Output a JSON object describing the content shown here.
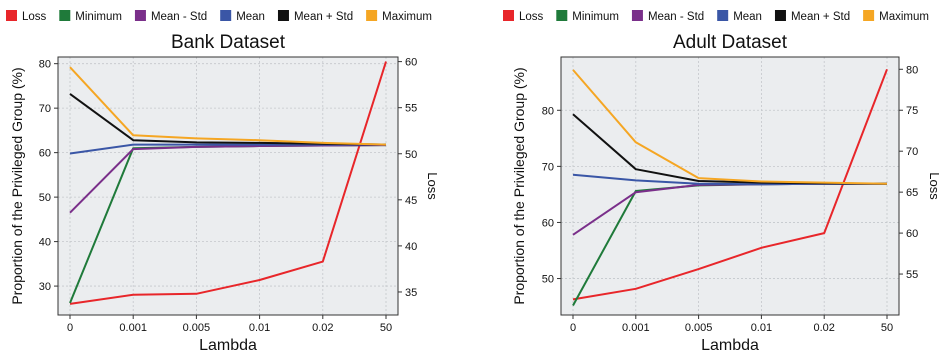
{
  "legend": [
    {
      "label": "Loss",
      "color": "#e8262a"
    },
    {
      "label": "Minimum",
      "color": "#1f7a3a"
    },
    {
      "label": "Mean - Std",
      "color": "#7a2f8a"
    },
    {
      "label": "Mean",
      "color": "#3a56a6"
    },
    {
      "label": "Mean + Std",
      "color": "#111111"
    },
    {
      "label": "Maximum",
      "color": "#f5a623"
    }
  ],
  "chart_data": [
    {
      "type": "line",
      "title": "Bank Dataset",
      "xlabel": "Lambda",
      "ylabel": "Proportion of the Privileged Group (%)",
      "y2label": "Loss",
      "categories": [
        "0",
        "0.001",
        "0.005",
        "0.01",
        "0.02",
        "50"
      ],
      "ylim": [
        23.5,
        81.5
      ],
      "yticks": [
        30,
        40,
        50,
        60,
        70,
        80
      ],
      "y2lim": [
        32.5,
        60.5
      ],
      "y2ticks": [
        35,
        40,
        45,
        50,
        55,
        60
      ],
      "grid": true,
      "series": [
        {
          "name": "Loss",
          "axis": "right",
          "color": "#e8262a",
          "values": [
            33.7,
            34.7,
            34.8,
            36.3,
            38.3,
            60.0
          ]
        },
        {
          "name": "Minimum",
          "axis": "left",
          "color": "#1f7a3a",
          "values": [
            26.2,
            61.0,
            61.3,
            61.5,
            61.6,
            61.7
          ]
        },
        {
          "name": "Mean - Std",
          "axis": "left",
          "color": "#7a2f8a",
          "values": [
            46.5,
            60.8,
            61.3,
            61.5,
            61.6,
            61.7
          ]
        },
        {
          "name": "Mean",
          "axis": "left",
          "color": "#3a56a6",
          "values": [
            59.8,
            61.8,
            61.8,
            61.8,
            61.8,
            61.8
          ]
        },
        {
          "name": "Mean + Std",
          "axis": "left",
          "color": "#111111",
          "values": [
            73.2,
            62.8,
            62.3,
            62.2,
            62.0,
            61.8
          ]
        },
        {
          "name": "Maximum",
          "axis": "left",
          "color": "#f5a623",
          "values": [
            79.2,
            63.9,
            63.2,
            62.8,
            62.2,
            61.8
          ]
        }
      ]
    },
    {
      "type": "line",
      "title": "Adult Dataset",
      "xlabel": "Lambda",
      "ylabel": "Proportion of the Privileged Group (%)",
      "y2label": "Loss",
      "categories": [
        "0",
        "0.001",
        "0.005",
        "0.01",
        "0.02",
        "50"
      ],
      "ylim": [
        43.5,
        89.5
      ],
      "yticks": [
        50,
        60,
        70,
        80
      ],
      "y2lim": [
        50.0,
        81.5
      ],
      "y2ticks": [
        55,
        60,
        65,
        70,
        75,
        80
      ],
      "grid": true,
      "series": [
        {
          "name": "Loss",
          "axis": "right",
          "color": "#e8262a",
          "values": [
            51.9,
            53.2,
            55.6,
            58.2,
            60.0,
            80.0
          ]
        },
        {
          "name": "Minimum",
          "axis": "left",
          "color": "#1f7a3a",
          "values": [
            45.2,
            65.6,
            66.6,
            66.8,
            66.9,
            66.9
          ]
        },
        {
          "name": "Mean - Std",
          "axis": "left",
          "color": "#7a2f8a",
          "values": [
            57.8,
            65.4,
            66.7,
            66.8,
            66.9,
            66.9
          ]
        },
        {
          "name": "Mean",
          "axis": "left",
          "color": "#3a56a6",
          "values": [
            68.5,
            67.5,
            66.9,
            66.8,
            66.9,
            66.9
          ]
        },
        {
          "name": "Mean + Std",
          "axis": "left",
          "color": "#111111",
          "values": [
            79.3,
            69.5,
            67.4,
            67.1,
            67.0,
            66.9
          ]
        },
        {
          "name": "Maximum",
          "axis": "left",
          "color": "#f5a623",
          "values": [
            87.2,
            74.3,
            67.9,
            67.3,
            67.1,
            66.9
          ]
        }
      ]
    }
  ]
}
